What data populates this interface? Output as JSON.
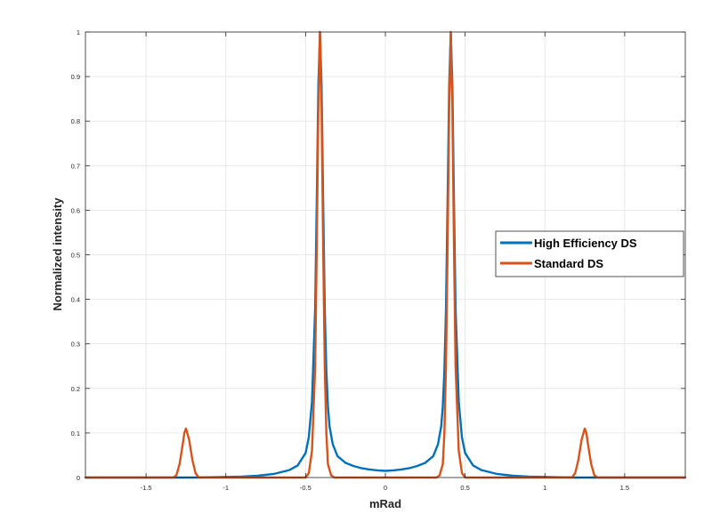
{
  "chart_data": {
    "type": "line",
    "title": "",
    "xlabel": "mRad",
    "ylabel": "Normalized intensity",
    "xlim": [
      -1.88,
      1.88
    ],
    "ylim": [
      0,
      1
    ],
    "xticks": [
      -1.5,
      -1,
      -0.5,
      0,
      0.5,
      1,
      1.5
    ],
    "xtick_labels": [
      "-1.5",
      "-1",
      "-0.5",
      "0",
      "0.5",
      "1",
      "1.5"
    ],
    "yticks": [
      0,
      0.1,
      0.2,
      0.3,
      0.4,
      0.5,
      0.6,
      0.7,
      0.8,
      0.9,
      1
    ],
    "ytick_labels": [
      "0",
      "0.1",
      "0.2",
      "0.3",
      "0.4",
      "0.5",
      "0.6",
      "0.7",
      "0.8",
      "0.9",
      "1"
    ],
    "grid": true,
    "legend_position": "center-right",
    "series": [
      {
        "name": "High Efficiency DS",
        "color": "#0072BD",
        "x": [
          -1.88,
          -1.2,
          -0.9,
          -0.8,
          -0.7,
          -0.6,
          -0.55,
          -0.5,
          -0.48,
          -0.46,
          -0.44,
          -0.43,
          -0.42,
          -0.41,
          -0.4,
          -0.39,
          -0.38,
          -0.37,
          -0.36,
          -0.35,
          -0.33,
          -0.3,
          -0.25,
          -0.2,
          -0.15,
          -0.1,
          -0.05,
          0,
          0.05,
          0.1,
          0.15,
          0.2,
          0.25,
          0.3,
          0.33,
          0.35,
          0.36,
          0.37,
          0.38,
          0.39,
          0.4,
          0.41,
          0.42,
          0.43,
          0.44,
          0.46,
          0.48,
          0.5,
          0.55,
          0.6,
          0.7,
          0.8,
          0.9,
          1.2,
          1.88
        ],
        "y": [
          0,
          0,
          0.002,
          0.004,
          0.008,
          0.017,
          0.027,
          0.055,
          0.09,
          0.17,
          0.38,
          0.62,
          0.88,
          1.0,
          0.88,
          0.62,
          0.38,
          0.24,
          0.16,
          0.115,
          0.075,
          0.048,
          0.033,
          0.026,
          0.021,
          0.018,
          0.016,
          0.015,
          0.016,
          0.018,
          0.021,
          0.026,
          0.033,
          0.048,
          0.075,
          0.115,
          0.16,
          0.24,
          0.38,
          0.62,
          0.88,
          1.0,
          0.88,
          0.62,
          0.38,
          0.17,
          0.09,
          0.055,
          0.027,
          0.017,
          0.008,
          0.004,
          0.002,
          0,
          0
        ]
      },
      {
        "name": "Standard DS",
        "color": "#D95319",
        "x": [
          -1.88,
          -1.33,
          -1.31,
          -1.29,
          -1.27,
          -1.26,
          -1.25,
          -1.23,
          -1.21,
          -1.19,
          -1.17,
          -0.5,
          -0.48,
          -0.46,
          -0.44,
          -0.43,
          -0.42,
          -0.41,
          -0.4,
          -0.39,
          -0.38,
          -0.37,
          -0.36,
          -0.34,
          -0.32,
          0.32,
          0.34,
          0.36,
          0.37,
          0.38,
          0.39,
          0.4,
          0.41,
          0.42,
          0.43,
          0.44,
          0.46,
          0.48,
          0.5,
          1.17,
          1.19,
          1.21,
          1.23,
          1.25,
          1.26,
          1.27,
          1.29,
          1.31,
          1.33,
          1.88
        ],
        "y": [
          0,
          0,
          0.005,
          0.03,
          0.075,
          0.1,
          0.11,
          0.085,
          0.04,
          0.01,
          0,
          0,
          0.01,
          0.06,
          0.25,
          0.52,
          0.83,
          1.0,
          0.83,
          0.52,
          0.25,
          0.1,
          0.03,
          0.005,
          0,
          0,
          0.005,
          0.03,
          0.1,
          0.25,
          0.52,
          0.83,
          1.0,
          0.83,
          0.52,
          0.25,
          0.06,
          0.01,
          0,
          0,
          0.01,
          0.04,
          0.085,
          0.11,
          0.1,
          0.075,
          0.03,
          0.005,
          0,
          0
        ]
      }
    ]
  }
}
